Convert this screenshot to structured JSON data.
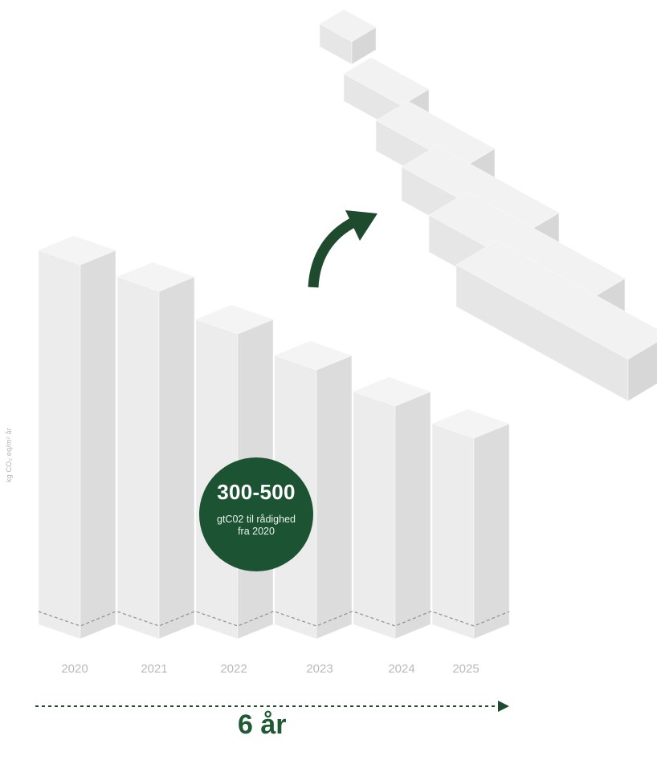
{
  "chart_data": {
    "type": "bar",
    "categories": [
      "2020",
      "2021",
      "2022",
      "2023",
      "2024",
      "2025"
    ],
    "ylabel": "kg CO₂ eq/m² år",
    "title": "",
    "callout": {
      "value": "300-500",
      "line1": "gtC02 til rådighed",
      "line2": "fra 2020"
    },
    "period_label": "6 år"
  },
  "colors": {
    "accent": "#1c5433",
    "bar_top": "#f4f4f4",
    "bar_front": "#ececec",
    "bar_side": "#dcdcdc",
    "axis_text": "#b9b9b9",
    "arrow_dotted": "#1f4a2e"
  },
  "icons": {
    "trend_arrow": "curved-up-arrow-icon",
    "timeline_arrow": "dotted-arrow-right-icon"
  }
}
